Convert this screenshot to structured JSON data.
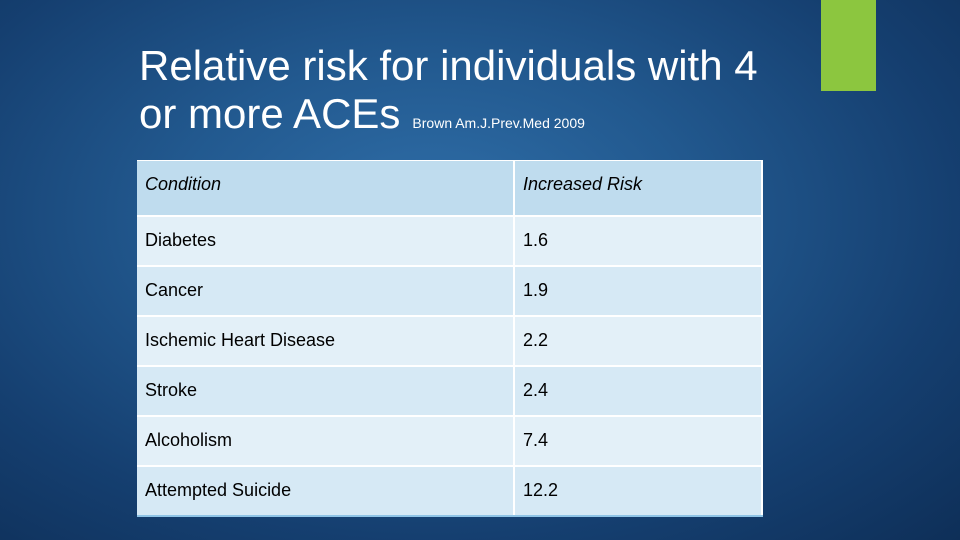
{
  "slide": {
    "title_text": "Relative risk for individuals with 4 or more ACEs",
    "citation": "Brown Am.J.Prev.Med 2009",
    "accent_color": "#8cc63f"
  },
  "table": {
    "headers": [
      "Condition",
      "Increased Risk"
    ],
    "rows": [
      {
        "condition": "Diabetes",
        "risk": "1.6"
      },
      {
        "condition": "Cancer",
        "risk": "1.9"
      },
      {
        "condition": "Ischemic Heart Disease",
        "risk": "2.2"
      },
      {
        "condition": "Stroke",
        "risk": "2.4"
      },
      {
        "condition": "Alcoholism",
        "risk": "7.4"
      },
      {
        "condition": "Attempted Suicide",
        "risk": "12.2"
      }
    ]
  }
}
